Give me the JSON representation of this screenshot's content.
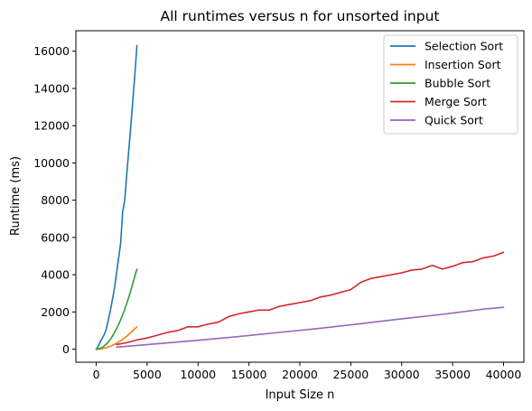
{
  "chart_data": {
    "type": "line",
    "title": "All runtimes versus n for unsorted input",
    "xlabel": "Input Size n",
    "ylabel": "Runtime (ms)",
    "xlim": [
      -2000,
      42000
    ],
    "ylim": [
      -700,
      17100
    ],
    "xticks": [
      0,
      5000,
      10000,
      15000,
      20000,
      25000,
      30000,
      35000,
      40000
    ],
    "yticks": [
      0,
      2000,
      4000,
      6000,
      8000,
      10000,
      12000,
      14000,
      16000
    ],
    "grid": false,
    "legend_position": "top-right",
    "series": [
      {
        "name": "Selection Sort",
        "color": "#1f77b4",
        "x": [
          0,
          200,
          400,
          600,
          800,
          1000,
          1200,
          1400,
          1600,
          1800,
          2000,
          2200,
          2400,
          2600,
          2800,
          3000,
          3200,
          3400,
          3600,
          3800,
          4000
        ],
        "y": [
          0,
          150,
          400,
          600,
          800,
          1100,
          1600,
          2100,
          2700,
          3300,
          4100,
          4900,
          5700,
          7400,
          8000,
          9400,
          10700,
          12000,
          13400,
          14800,
          16300
        ]
      },
      {
        "name": "Insertion Sort",
        "color": "#ff7f0e",
        "x": [
          0,
          500,
          1000,
          1500,
          2000,
          2500,
          3000,
          3500,
          4000
        ],
        "y": [
          0,
          20,
          80,
          180,
          320,
          490,
          700,
          950,
          1200
        ]
      },
      {
        "name": "Bubble Sort",
        "color": "#2ca02c",
        "x": [
          0,
          250,
          500,
          750,
          1000,
          1250,
          1500,
          1750,
          2000,
          2250,
          2500,
          2750,
          3000,
          3250,
          3500,
          3750,
          4000
        ],
        "y": [
          0,
          20,
          70,
          160,
          280,
          430,
          620,
          850,
          1100,
          1390,
          1710,
          2070,
          2460,
          2890,
          3350,
          3840,
          4300
        ]
      },
      {
        "name": "Merge Sort",
        "color": "#d62728",
        "x": [
          2000,
          3000,
          4000,
          5000,
          6000,
          7000,
          8000,
          9000,
          10000,
          11000,
          12000,
          13000,
          14000,
          15000,
          16000,
          17000,
          18000,
          19000,
          20000,
          21000,
          22000,
          23000,
          24000,
          25000,
          26000,
          27000,
          28000,
          29000,
          30000,
          31000,
          32000,
          33000,
          34000,
          35000,
          36000,
          37000,
          38000,
          39000,
          40000
        ],
        "y": [
          250,
          350,
          500,
          600,
          750,
          900,
          1000,
          1200,
          1200,
          1350,
          1450,
          1750,
          1900,
          2000,
          2100,
          2100,
          2300,
          2400,
          2500,
          2600,
          2800,
          2900,
          3050,
          3200,
          3600,
          3800,
          3900,
          4000,
          4100,
          4250,
          4300,
          4500,
          4300,
          4450,
          4650,
          4700,
          4900,
          5000,
          5200
        ]
      },
      {
        "name": "Quick Sort",
        "color": "#9467bd",
        "x": [
          2000,
          6000,
          10000,
          14000,
          18000,
          22000,
          26000,
          30000,
          34000,
          38000,
          40000
        ],
        "y": [
          110,
          290,
          480,
          680,
          900,
          1120,
          1370,
          1630,
          1870,
          2150,
          2250
        ]
      }
    ]
  }
}
